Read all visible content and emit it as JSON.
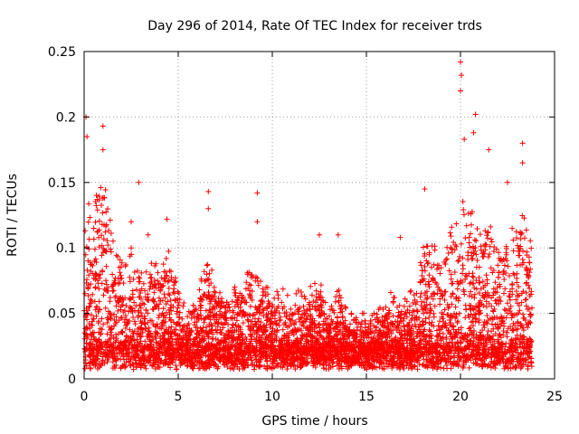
{
  "chart_data": {
    "type": "scatter",
    "title": "Day 296 of 2014, Rate Of TEC Index for receiver trds",
    "xlabel": "GPS time / hours",
    "ylabel": "ROTI / TECUs",
    "xlim": [
      0,
      25
    ],
    "ylim": [
      0,
      0.25
    ],
    "xticks": [
      0,
      5,
      10,
      15,
      20,
      25
    ],
    "xtick_labels": [
      "0",
      "5",
      "10",
      "15",
      "20",
      "25"
    ],
    "yticks": [
      0,
      0.05,
      0.1,
      0.15,
      0.2,
      0.25
    ],
    "ytick_labels": [
      "0",
      "0.05",
      "0.1",
      "0.15",
      "0.2",
      "0.25"
    ],
    "grid": true,
    "marker": "+",
    "color": "#ff0000",
    "data_x_range_hours": [
      0,
      23.8
    ],
    "baseline_value": 0.02,
    "notable_points": [
      {
        "x": 0.1,
        "y": 0.2
      },
      {
        "x": 0.15,
        "y": 0.185
      },
      {
        "x": 1.0,
        "y": 0.193
      },
      {
        "x": 1.0,
        "y": 0.175
      },
      {
        "x": 2.9,
        "y": 0.15
      },
      {
        "x": 6.6,
        "y": 0.143
      },
      {
        "x": 6.6,
        "y": 0.13
      },
      {
        "x": 9.2,
        "y": 0.142
      },
      {
        "x": 9.2,
        "y": 0.12
      },
      {
        "x": 12.5,
        "y": 0.11
      },
      {
        "x": 13.5,
        "y": 0.11
      },
      {
        "x": 16.8,
        "y": 0.108
      },
      {
        "x": 18.1,
        "y": 0.145
      },
      {
        "x": 20.0,
        "y": 0.242
      },
      {
        "x": 20.05,
        "y": 0.232
      },
      {
        "x": 20.0,
        "y": 0.22
      },
      {
        "x": 20.8,
        "y": 0.202
      },
      {
        "x": 20.7,
        "y": 0.188
      },
      {
        "x": 20.2,
        "y": 0.183
      },
      {
        "x": 21.5,
        "y": 0.175
      },
      {
        "x": 23.3,
        "y": 0.18
      },
      {
        "x": 23.3,
        "y": 0.165
      },
      {
        "x": 22.5,
        "y": 0.15
      },
      {
        "x": 4.4,
        "y": 0.122
      },
      {
        "x": 2.5,
        "y": 0.12
      },
      {
        "x": 3.4,
        "y": 0.11
      }
    ],
    "envelope": [
      {
        "x": 0.0,
        "ymax": 0.13
      },
      {
        "x": 0.5,
        "ymax": 0.15
      },
      {
        "x": 1.0,
        "ymax": 0.16
      },
      {
        "x": 1.5,
        "ymax": 0.11
      },
      {
        "x": 2.0,
        "ymax": 0.09
      },
      {
        "x": 2.5,
        "ymax": 0.1
      },
      {
        "x": 3.0,
        "ymax": 0.08
      },
      {
        "x": 3.5,
        "ymax": 0.09
      },
      {
        "x": 4.0,
        "ymax": 0.09
      },
      {
        "x": 4.5,
        "ymax": 0.1
      },
      {
        "x": 5.0,
        "ymax": 0.07
      },
      {
        "x": 5.5,
        "ymax": 0.05
      },
      {
        "x": 6.0,
        "ymax": 0.06
      },
      {
        "x": 6.5,
        "ymax": 0.1
      },
      {
        "x": 7.0,
        "ymax": 0.07
      },
      {
        "x": 7.5,
        "ymax": 0.06
      },
      {
        "x": 8.0,
        "ymax": 0.07
      },
      {
        "x": 8.5,
        "ymax": 0.08
      },
      {
        "x": 9.0,
        "ymax": 0.09
      },
      {
        "x": 9.5,
        "ymax": 0.07
      },
      {
        "x": 10.0,
        "ymax": 0.07
      },
      {
        "x": 10.5,
        "ymax": 0.07
      },
      {
        "x": 11.0,
        "ymax": 0.06
      },
      {
        "x": 11.5,
        "ymax": 0.07
      },
      {
        "x": 12.0,
        "ymax": 0.07
      },
      {
        "x": 12.5,
        "ymax": 0.08
      },
      {
        "x": 13.0,
        "ymax": 0.05
      },
      {
        "x": 13.5,
        "ymax": 0.07
      },
      {
        "x": 14.0,
        "ymax": 0.05
      },
      {
        "x": 14.5,
        "ymax": 0.05
      },
      {
        "x": 15.0,
        "ymax": 0.05
      },
      {
        "x": 15.5,
        "ymax": 0.05
      },
      {
        "x": 16.0,
        "ymax": 0.06
      },
      {
        "x": 16.5,
        "ymax": 0.07
      },
      {
        "x": 17.0,
        "ymax": 0.06
      },
      {
        "x": 17.5,
        "ymax": 0.07
      },
      {
        "x": 18.0,
        "ymax": 0.1
      },
      {
        "x": 18.5,
        "ymax": 0.11
      },
      {
        "x": 19.0,
        "ymax": 0.1
      },
      {
        "x": 19.5,
        "ymax": 0.12
      },
      {
        "x": 20.0,
        "ymax": 0.14
      },
      {
        "x": 20.5,
        "ymax": 0.13
      },
      {
        "x": 21.0,
        "ymax": 0.12
      },
      {
        "x": 21.5,
        "ymax": 0.12
      },
      {
        "x": 22.0,
        "ymax": 0.1
      },
      {
        "x": 22.5,
        "ymax": 0.11
      },
      {
        "x": 23.0,
        "ymax": 0.12
      },
      {
        "x": 23.5,
        "ymax": 0.13
      },
      {
        "x": 23.8,
        "ymax": 0.1
      }
    ]
  }
}
